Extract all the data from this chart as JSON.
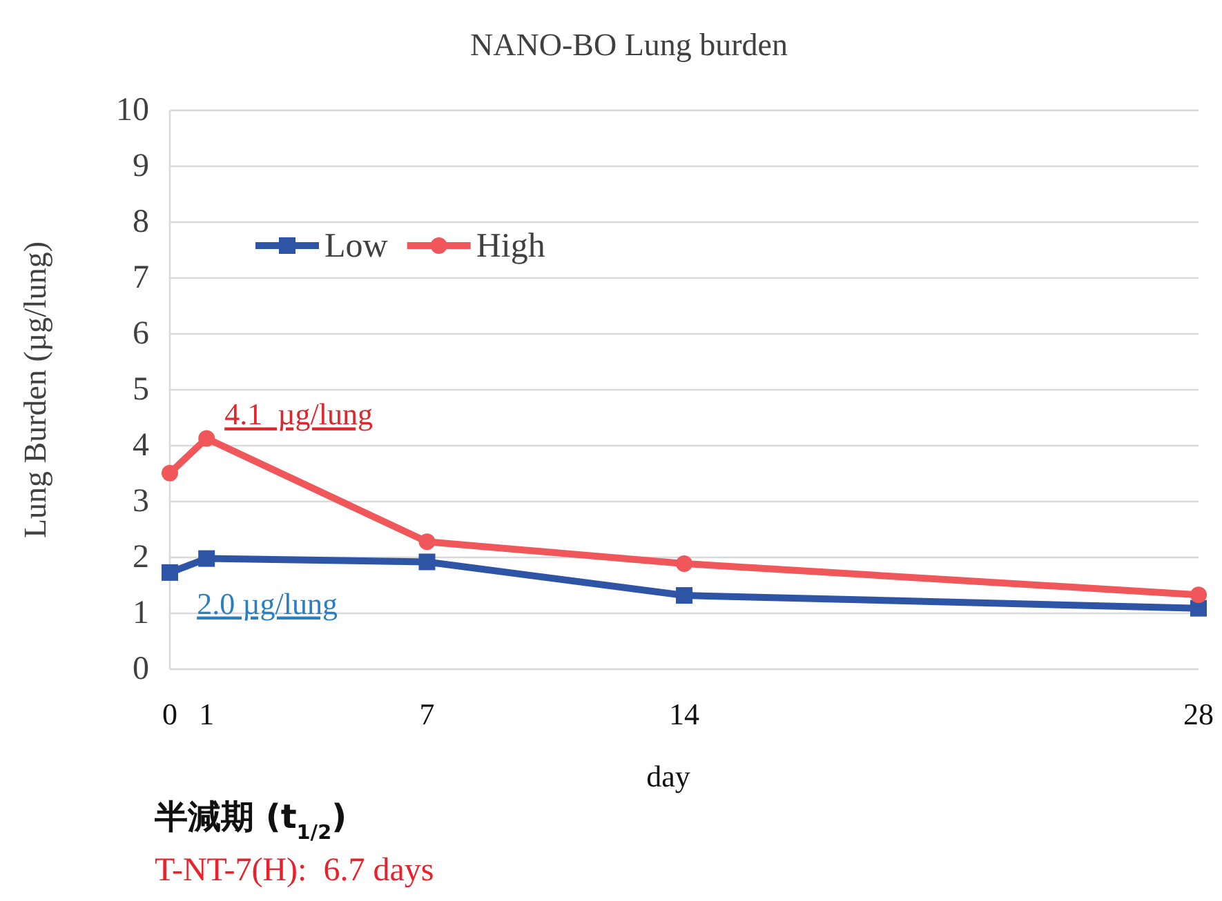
{
  "chart_data": {
    "type": "line",
    "title": "NANO-BO Lung burden",
    "xlabel": "day",
    "ylabel": "Lung Burden (µg/lung)",
    "x": [
      0,
      1,
      7,
      14,
      28
    ],
    "series": [
      {
        "name": "Low",
        "color": "#2e54a6",
        "marker": "square",
        "values": [
          1.73,
          1.98,
          1.92,
          1.32,
          1.09
        ]
      },
      {
        "name": "High",
        "color": "#f0575a",
        "marker": "circle",
        "values": [
          3.51,
          4.13,
          2.28,
          1.89,
          1.33
        ]
      }
    ],
    "xlim": [
      0,
      28
    ],
    "xticks": [
      0,
      1,
      7,
      14,
      28
    ],
    "ylim": [
      0,
      10
    ],
    "yticks": [
      0,
      1,
      2,
      3,
      4,
      5,
      6,
      7,
      8,
      9,
      10
    ],
    "grid": "y",
    "legend": "top left",
    "line_style": "solid",
    "annotations": [
      {
        "text": "4.1  µg/lung",
        "x": 1,
        "y": 4.13
      },
      {
        "text": "2.0 µg/lung",
        "x": 1,
        "y": 1.98
      },
      "半減期 (t$_{1/2}$)",
      "T-NT-7(H):  6.7 days"
    ]
  }
}
